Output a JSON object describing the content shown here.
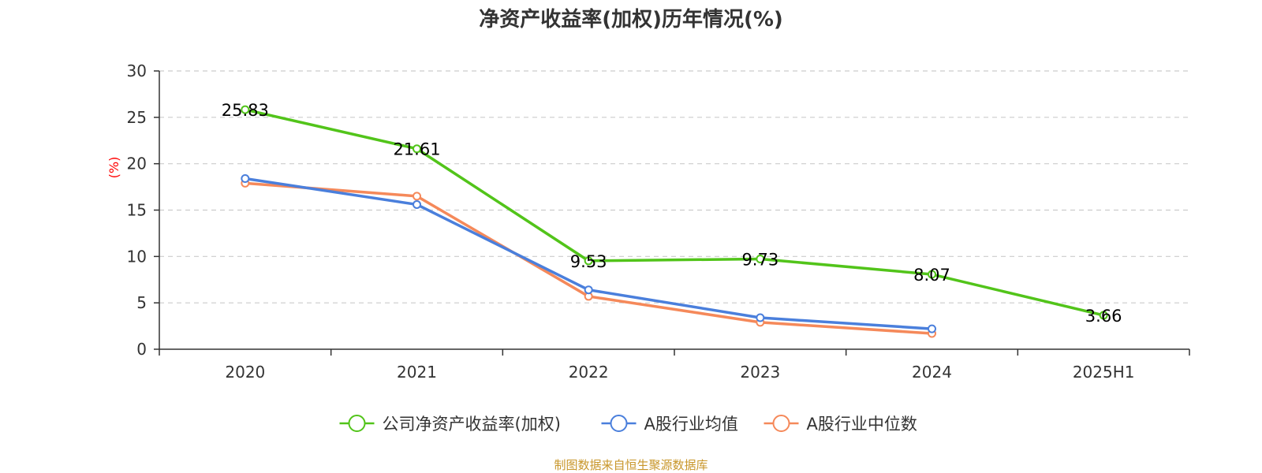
{
  "chart_data": {
    "type": "line",
    "title": "净资产收益率(加权)历年情况(%)",
    "ylabel": "(%)",
    "xlabel": "",
    "categories": [
      "2020",
      "2021",
      "2022",
      "2023",
      "2024",
      "2025H1"
    ],
    "ylim": [
      0,
      30
    ],
    "yticks": [
      0,
      5,
      10,
      15,
      20,
      25,
      30
    ],
    "grid": true,
    "legend_position": "bottom",
    "series": [
      {
        "name": "公司净资产收益率(加权)",
        "color": "#52c41a",
        "values": [
          25.83,
          21.61,
          9.53,
          9.73,
          8.07,
          3.66
        ],
        "labels": [
          "25.83",
          "21.61",
          "9.53",
          "9.73",
          "8.07",
          "3.66"
        ]
      },
      {
        "name": "A股行业均值",
        "color": "#4a7fdc",
        "values": [
          18.4,
          15.6,
          6.4,
          3.4,
          2.2,
          null
        ]
      },
      {
        "name": "A股行业中位数",
        "color": "#f5895a",
        "values": [
          17.9,
          16.5,
          5.7,
          2.9,
          1.7,
          null
        ]
      }
    ],
    "source": "制图数据来自恒生聚源数据库"
  }
}
